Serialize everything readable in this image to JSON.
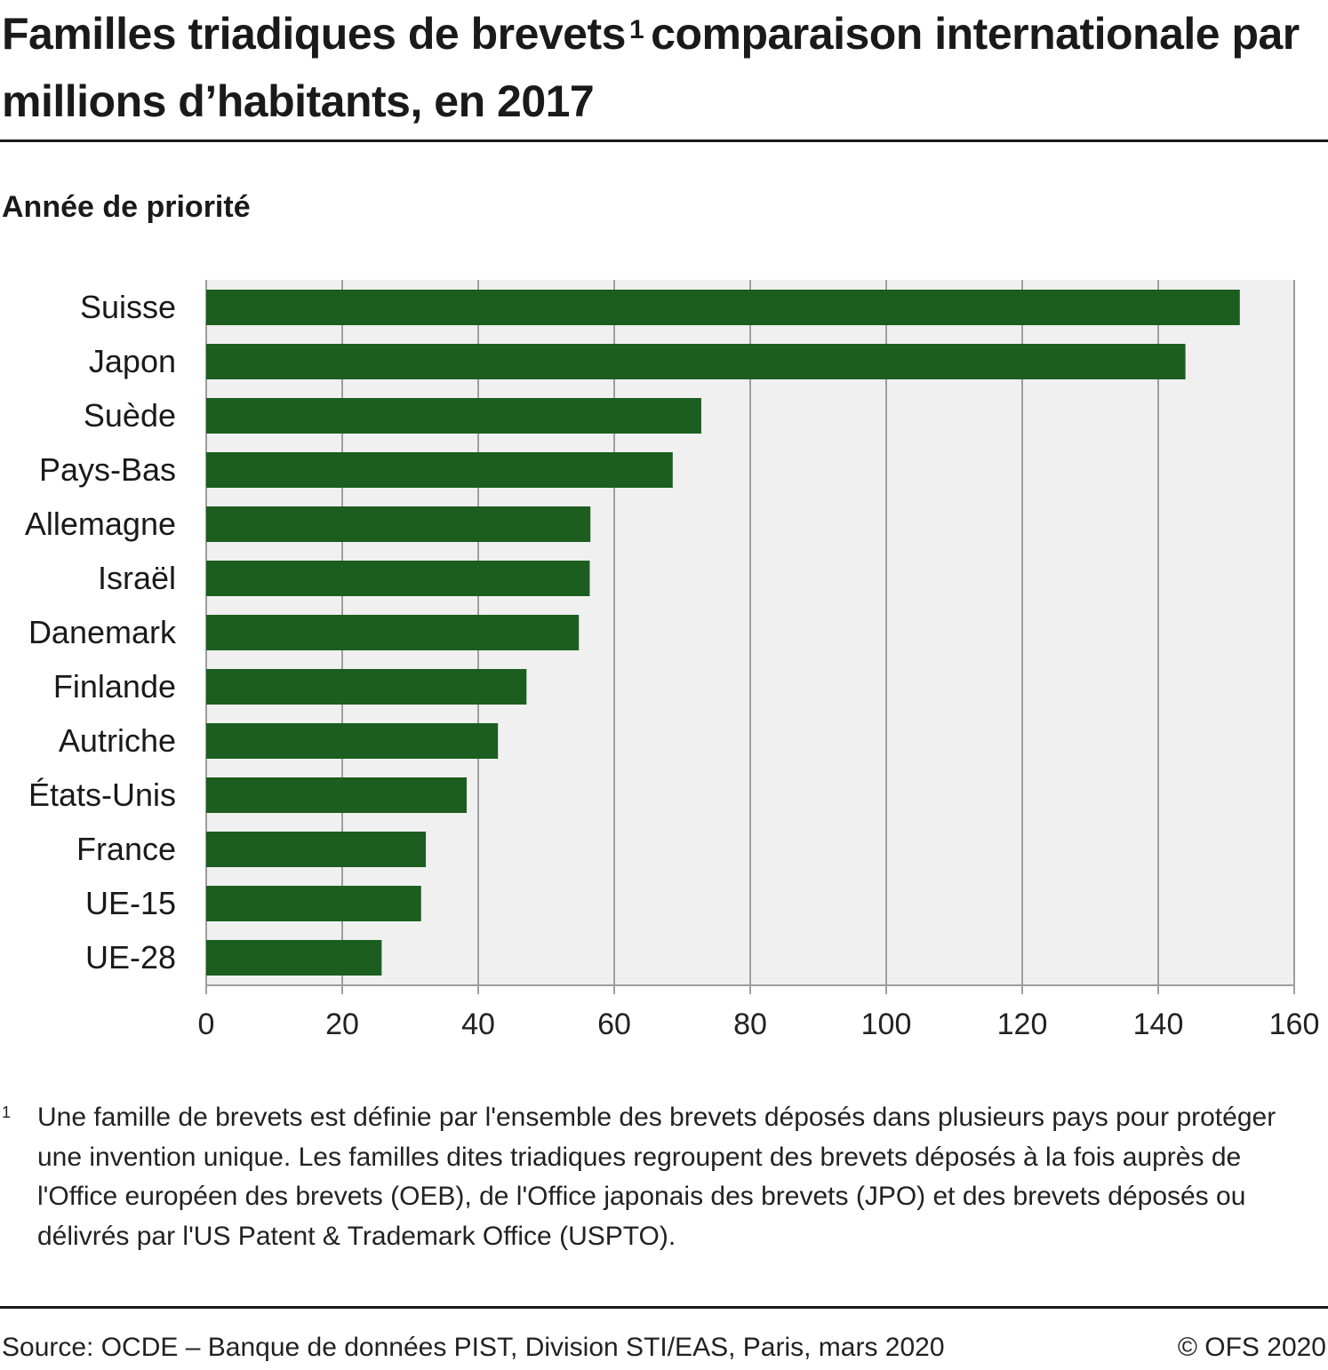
{
  "header": {
    "title_part1": "Familles triadiques de brevets",
    "title_sup": "1",
    "title_part2": "comparaison internationale par millions d’habitants, en 2017",
    "subtitle": "Année de priorité"
  },
  "footnote": {
    "marker": "1",
    "text": "Une famille de brevets est définie par l'ensemble des brevets déposés dans plusieurs pays pour protéger une invention unique. Les familles dites triadiques regroupent des brevets déposés à la fois auprès de l'Office européen des brevets (OEB), de l'Office japonais des brevets (JPO) et des brevets déposés ou délivrés par l'US Patent & Trademark Office (USPTO)."
  },
  "footer": {
    "source": "Source: OCDE – Banque de données PIST, Division STI/EAS, Paris, mars 2020",
    "copyright": "© OFS 2020"
  },
  "colors": {
    "bar": "#1b5e20",
    "plot_background": "#f0f0f0",
    "grid": "#9e9e9e"
  },
  "chart_data": {
    "type": "bar",
    "orientation": "horizontal",
    "categories": [
      "Suisse",
      "Japon",
      "Suède",
      "Pays-Bas",
      "Allemagne",
      "Israël",
      "Danemark",
      "Finlande",
      "Autriche",
      "États-Unis",
      "France",
      "UE-15",
      "UE-28"
    ],
    "values": [
      152,
      144,
      72.8,
      68.6,
      56.5,
      56.4,
      54.8,
      47.1,
      42.9,
      38.3,
      32.3,
      31.6,
      25.8
    ],
    "xlim": [
      0,
      160
    ],
    "xticks": [
      0,
      20,
      40,
      60,
      80,
      100,
      120,
      140,
      160
    ],
    "grid": true,
    "title": "Familles triadiques de brevets comparaison internationale par millions d’habitants, en 2017",
    "xlabel": "",
    "ylabel": ""
  }
}
